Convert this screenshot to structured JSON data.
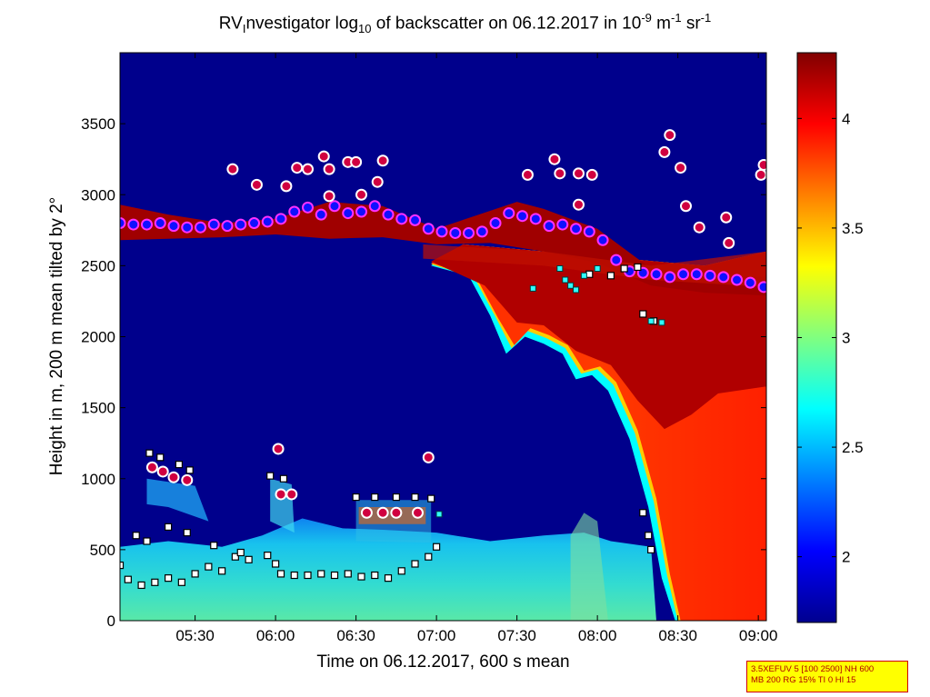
{
  "chart_data": {
    "type": "heatmap",
    "title": {
      "p1": "RV",
      "p1_sub": "I",
      "p2": "nvestigator log",
      "p2_sub": "10",
      "p3": " of backscatter on 06.12.2017 in 10",
      "p3_sup": "-9",
      "p4": " m",
      "p4_sup": "-1",
      "p5": " sr",
      "p5_sup": "-1"
    },
    "xlabel": "Time on 06.12.2017, 600 s mean",
    "ylabel": "Height in m, 200 m mean tilted by 2°",
    "x_ticks": [
      "05:30",
      "06:00",
      "06:30",
      "07:00",
      "07:30",
      "08:00",
      "08:30",
      "09:00"
    ],
    "y_ticks": [
      "0",
      "500",
      "1000",
      "1500",
      "2000",
      "2500",
      "3000",
      "3500"
    ],
    "xlim": [
      "05:02",
      "09:03"
    ],
    "ylim": [
      0,
      4000
    ],
    "colorbar": {
      "ticks": [
        "2",
        "2.5",
        "3",
        "3.5",
        "4"
      ],
      "range": [
        1.7,
        4.3
      ],
      "colormap": "jet"
    },
    "cloud_top_markers": [
      [
        "05:02",
        2800
      ],
      [
        "05:07",
        2790
      ],
      [
        "05:12",
        2790
      ],
      [
        "05:17",
        2800
      ],
      [
        "05:22",
        2780
      ],
      [
        "05:27",
        2770
      ],
      [
        "05:32",
        2770
      ],
      [
        "05:37",
        2790
      ],
      [
        "05:42",
        2780
      ],
      [
        "05:47",
        2790
      ],
      [
        "05:52",
        2800
      ],
      [
        "05:57",
        2810
      ],
      [
        "06:02",
        2830
      ],
      [
        "06:07",
        2880
      ],
      [
        "06:12",
        2910
      ],
      [
        "06:17",
        2860
      ],
      [
        "06:22",
        2920
      ],
      [
        "06:27",
        2870
      ],
      [
        "06:32",
        2880
      ],
      [
        "06:37",
        2920
      ],
      [
        "06:42",
        2860
      ],
      [
        "06:47",
        2830
      ],
      [
        "06:52",
        2820
      ],
      [
        "06:57",
        2760
      ],
      [
        "07:02",
        2740
      ],
      [
        "07:07",
        2730
      ],
      [
        "07:12",
        2730
      ],
      [
        "07:17",
        2740
      ],
      [
        "07:22",
        2800
      ],
      [
        "07:27",
        2870
      ],
      [
        "07:32",
        2850
      ],
      [
        "07:37",
        2830
      ],
      [
        "07:42",
        2780
      ],
      [
        "07:47",
        2790
      ],
      [
        "07:52",
        2760
      ],
      [
        "07:57",
        2740
      ],
      [
        "08:02",
        2680
      ],
      [
        "08:07",
        2540
      ],
      [
        "08:12",
        2460
      ],
      [
        "08:17",
        2450
      ],
      [
        "08:22",
        2440
      ],
      [
        "08:27",
        2420
      ],
      [
        "08:32",
        2440
      ],
      [
        "08:37",
        2440
      ],
      [
        "08:42",
        2430
      ],
      [
        "08:47",
        2420
      ],
      [
        "08:52",
        2400
      ],
      [
        "08:57",
        2380
      ],
      [
        "09:02",
        2350
      ]
    ],
    "scattered_circle_markers": [
      [
        "05:44",
        3180
      ],
      [
        "05:53",
        3070
      ],
      [
        "06:04",
        3060
      ],
      [
        "06:08",
        3190
      ],
      [
        "06:12",
        3180
      ],
      [
        "06:18",
        3270
      ],
      [
        "06:20",
        3180
      ],
      [
        "06:27",
        3230
      ],
      [
        "06:30",
        3230
      ],
      [
        "06:38",
        3090
      ],
      [
        "06:40",
        3240
      ],
      [
        "06:20",
        2990
      ],
      [
        "06:32",
        3000
      ],
      [
        "07:34",
        3140
      ],
      [
        "07:44",
        3250
      ],
      [
        "07:46",
        3150
      ],
      [
        "07:53",
        3150
      ],
      [
        "07:58",
        3140
      ],
      [
        "07:53",
        2930
      ],
      [
        "08:25",
        3300
      ],
      [
        "08:27",
        3420
      ],
      [
        "08:31",
        3190
      ],
      [
        "08:33",
        2920
      ],
      [
        "08:38",
        2770
      ],
      [
        "08:48",
        2840
      ],
      [
        "08:49",
        2660
      ],
      [
        "09:01",
        3140
      ],
      [
        "09:02",
        3210
      ],
      [
        "05:14",
        1080
      ],
      [
        "05:18",
        1050
      ],
      [
        "05:22",
        1010
      ],
      [
        "05:27",
        990
      ],
      [
        "06:01",
        1210
      ],
      [
        "06:02",
        890
      ],
      [
        "06:06",
        890
      ],
      [
        "06:34",
        760
      ],
      [
        "06:40",
        760
      ],
      [
        "06:45",
        760
      ],
      [
        "06:53",
        760
      ],
      [
        "06:57",
        1150
      ]
    ],
    "aerosol_layer_markers": [
      [
        "05:02",
        390
      ],
      [
        "05:05",
        290
      ],
      [
        "05:10",
        250
      ],
      [
        "05:15",
        270
      ],
      [
        "05:20",
        300
      ],
      [
        "05:25",
        270
      ],
      [
        "05:30",
        330
      ],
      [
        "05:35",
        380
      ],
      [
        "05:40",
        350
      ],
      [
        "05:45",
        450
      ],
      [
        "05:50",
        430
      ],
      [
        "06:00",
        400
      ],
      [
        "06:02",
        330
      ],
      [
        "06:07",
        320
      ],
      [
        "06:12",
        320
      ],
      [
        "06:17",
        330
      ],
      [
        "06:22",
        320
      ],
      [
        "06:27",
        330
      ],
      [
        "06:32",
        310
      ],
      [
        "06:37",
        320
      ],
      [
        "06:42",
        300
      ],
      [
        "06:47",
        350
      ],
      [
        "06:52",
        400
      ],
      [
        "06:57",
        450
      ],
      [
        "07:00",
        520
      ],
      [
        "05:08",
        600
      ],
      [
        "05:12",
        560
      ],
      [
        "05:20",
        660
      ],
      [
        "05:27",
        620
      ],
      [
        "05:37",
        530
      ],
      [
        "05:47",
        480
      ],
      [
        "05:57",
        460
      ],
      [
        "06:30",
        870
      ],
      [
        "06:37",
        870
      ],
      [
        "06:45",
        870
      ],
      [
        "06:52",
        870
      ],
      [
        "06:58",
        860
      ],
      [
        "05:13",
        1180
      ],
      [
        "05:17",
        1150
      ],
      [
        "05:24",
        1100
      ],
      [
        "05:28",
        1060
      ],
      [
        "05:58",
        1020
      ],
      [
        "06:03",
        1000
      ],
      [
        "07:57",
        2440
      ],
      [
        "08:05",
        2430
      ],
      [
        "08:10",
        2480
      ],
      [
        "08:15",
        2490
      ],
      [
        "08:17",
        2160
      ],
      [
        "08:21",
        2110
      ],
      [
        "08:17",
        760
      ],
      [
        "08:19",
        600
      ],
      [
        "08:20",
        500
      ]
    ],
    "cyan_square_markers": [
      [
        "07:36",
        2340
      ],
      [
        "07:46",
        2480
      ],
      [
        "07:48",
        2400
      ],
      [
        "07:50",
        2360
      ],
      [
        "07:52",
        2330
      ],
      [
        "07:55",
        2430
      ],
      [
        "08:00",
        2480
      ],
      [
        "08:20",
        2110
      ],
      [
        "08:24",
        2100
      ],
      [
        "07:01",
        750
      ]
    ]
  },
  "badge": {
    "line1": "3.5XEFUV 5 [100 2500] NH 600",
    "line2": "MB 200 RG 15% TI 0 HI 15"
  }
}
